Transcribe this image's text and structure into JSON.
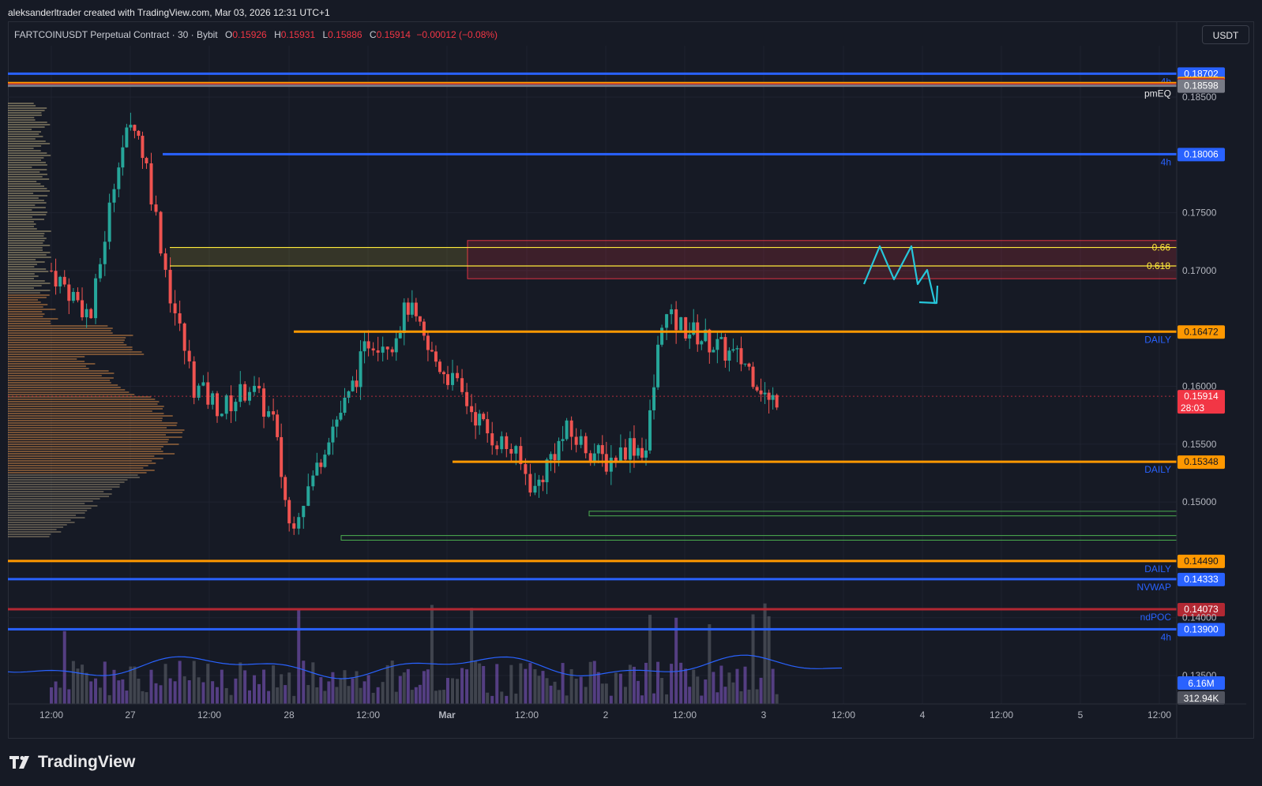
{
  "header": {
    "credit": "aleksanderltrader created with TradingView.com, Mar 03, 2026 12:31 UTC+1"
  },
  "legend": {
    "symbol": "FARTCOINUSDT Perpetual Contract · 30 · Bybit",
    "o_label": "O",
    "o_value": "0.15926",
    "h_label": "H",
    "h_value": "0.15931",
    "l_label": "L",
    "l_value": "0.15886",
    "c_label": "C",
    "c_value": "0.15914",
    "change": "−0.00012 (−0.08%)"
  },
  "toolbar": {
    "currency": "USDT"
  },
  "branding": {
    "logo_text": "TradingView"
  },
  "colors": {
    "background": "#161a25",
    "up": "#26a69a",
    "down": "#ef5350",
    "orange_level": "#ff9800",
    "blue_level": "#2962ff",
    "fib_line": "#ffeb3b",
    "drawing": "#26c6da"
  },
  "chart_data": {
    "type": "candlestick",
    "symbol": "FARTCOINUSDT",
    "timeframe": "30",
    "y_range": [
      0.132,
      0.19
    ],
    "y_ticks": [
      {
        "value": 0.185,
        "label": "0.18500"
      },
      {
        "value": 0.175,
        "label": "0.17500"
      },
      {
        "value": 0.17,
        "label": "0.17000"
      },
      {
        "value": 0.16,
        "label": "0.16000"
      },
      {
        "value": 0.155,
        "label": "0.15500"
      },
      {
        "value": 0.15,
        "label": "0.15000"
      },
      {
        "value": 0.14,
        "label": "0.14000"
      },
      {
        "value": 0.135,
        "label": "0.13500"
      }
    ],
    "x_labels": [
      "12:00",
      "27",
      "12:00",
      "28",
      "12:00",
      "Mar",
      "12:00",
      "2",
      "12:00",
      "3",
      "12:00",
      "4",
      "12:00",
      "5",
      "12:00"
    ],
    "price_path_approx": [
      {
        "t": 1,
        "p": 0.17
      },
      {
        "t": 2,
        "p": 0.166
      },
      {
        "t": 2.7,
        "p": 0.18
      },
      {
        "t": 3.1,
        "p": 0.183
      },
      {
        "t": 3.4,
        "p": 0.179
      },
      {
        "t": 4,
        "p": 0.168
      },
      {
        "t": 4.6,
        "p": 0.16
      },
      {
        "t": 5.3,
        "p": 0.158
      },
      {
        "t": 6,
        "p": 0.16
      },
      {
        "t": 6.6,
        "p": 0.157
      },
      {
        "t": 7,
        "p": 0.148
      },
      {
        "t": 7.6,
        "p": 0.152
      },
      {
        "t": 8,
        "p": 0.156
      },
      {
        "t": 8.5,
        "p": 0.159
      },
      {
        "t": 9,
        "p": 0.164
      },
      {
        "t": 9.6,
        "p": 0.164
      },
      {
        "t": 10,
        "p": 0.167
      },
      {
        "t": 10.5,
        "p": 0.163
      },
      {
        "t": 11,
        "p": 0.161
      },
      {
        "t": 11.6,
        "p": 0.158
      },
      {
        "t": 12,
        "p": 0.156
      },
      {
        "t": 12.6,
        "p": 0.1545
      },
      {
        "t": 13.2,
        "p": 0.151
      },
      {
        "t": 13.6,
        "p": 0.154
      },
      {
        "t": 14,
        "p": 0.156
      },
      {
        "t": 14.6,
        "p": 0.1545
      },
      {
        "t": 15,
        "p": 0.1535
      },
      {
        "t": 15.6,
        "p": 0.155
      },
      {
        "t": 16,
        "p": 0.1545
      },
      {
        "t": 16.2,
        "p": 0.16
      },
      {
        "t": 16.4,
        "p": 0.166
      },
      {
        "t": 17,
        "p": 0.165
      },
      {
        "t": 17.5,
        "p": 0.164
      },
      {
        "t": 18,
        "p": 0.163
      },
      {
        "t": 18.5,
        "p": 0.162
      },
      {
        "t": 18.9,
        "p": 0.16
      },
      {
        "t": 19.1,
        "p": 0.1585
      },
      {
        "t": 19.3,
        "p": 0.1591
      }
    ],
    "horizontal_levels": [
      {
        "price": 0.18702,
        "axis_label": "0.18702",
        "color": "#2962ff",
        "tag": "4h"
      },
      {
        "price": 0.18621,
        "axis_label": "0.18621",
        "color": "#ff9800",
        "tag": ""
      },
      {
        "price": 0.18608,
        "axis_label": "0.18608",
        "color": "#b22833",
        "tag": ""
      },
      {
        "price": 0.18598,
        "axis_label": "0.18598",
        "color": "#787b86",
        "tag": "pmEQ"
      },
      {
        "price": 0.18006,
        "axis_label": "0.18006",
        "color": "#2962ff",
        "tag": "4h"
      },
      {
        "price": 0.16472,
        "axis_label": "0.16472",
        "color": "#ff9800",
        "tag": "DAILY"
      },
      {
        "price": 0.15914,
        "axis_label": "0.15914",
        "color": "#f23645",
        "tag": "",
        "sub_label": "28:03"
      },
      {
        "price": 0.15348,
        "axis_label": "0.15348",
        "color": "#ff9800",
        "tag": "DAILY"
      },
      {
        "price": 0.1449,
        "axis_label": "0.14490",
        "color": "#ff9800",
        "tag": "DAILY"
      },
      {
        "price": 0.14333,
        "axis_label": "0.14333",
        "color": "#2962ff",
        "tag": "NVWAP"
      },
      {
        "price": 0.14073,
        "axis_label": "0.14073",
        "color": "#b22833",
        "tag": "ndPOC"
      },
      {
        "price": 0.139,
        "axis_label": "0.13900",
        "color": "#2962ff",
        "tag": "4h"
      }
    ],
    "fib_levels": [
      {
        "ratio_label": "0.66",
        "price": 0.172
      },
      {
        "ratio_label": "0.618",
        "price": 0.1704
      }
    ],
    "zones": [
      {
        "type": "supply",
        "from": 0.1693,
        "to": 0.1726
      },
      {
        "type": "demand",
        "from": 0.1488,
        "to": 0.1492
      },
      {
        "type": "demand",
        "from": 0.1467,
        "to": 0.1471
      }
    ],
    "volume_axis_labels": [
      {
        "label": "6.16M",
        "color": "#2962ff"
      },
      {
        "label": "312.94K",
        "color": "#50535e"
      }
    ]
  }
}
